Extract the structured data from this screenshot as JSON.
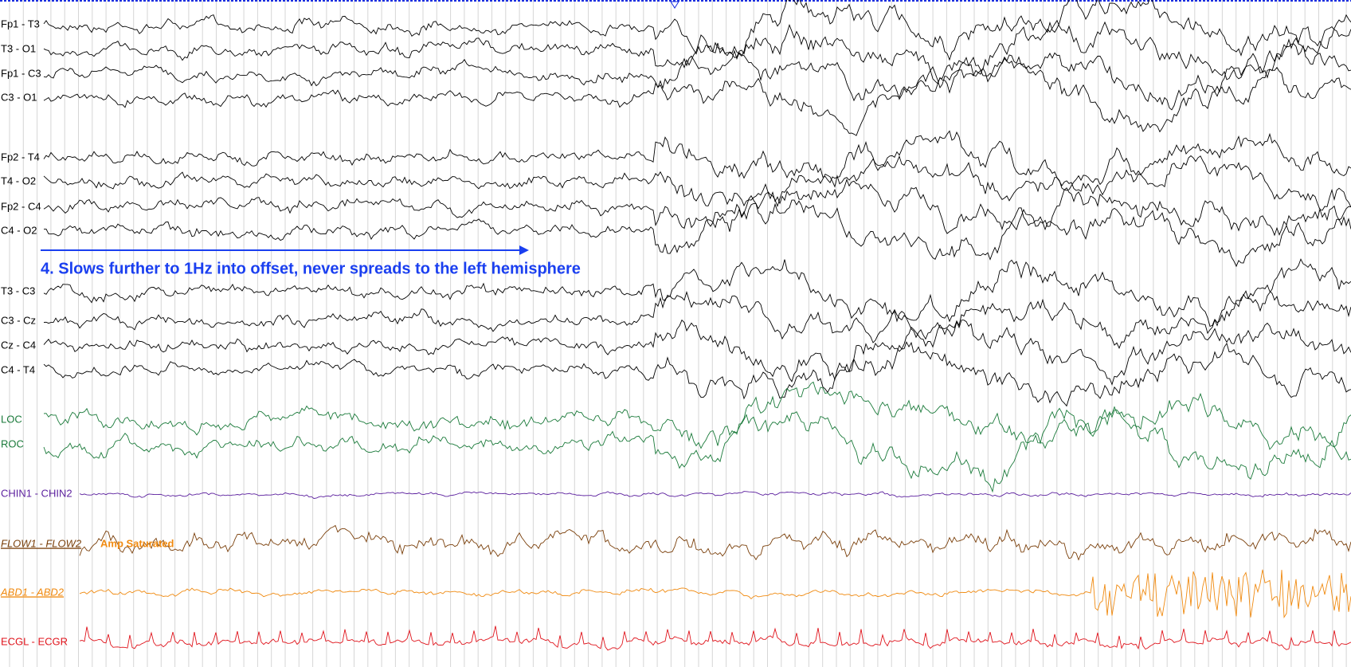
{
  "channels": [
    {
      "label": "Fp1 - T3",
      "color": "#000000"
    },
    {
      "label": "T3 - O1",
      "color": "#000000"
    },
    {
      "label": "Fp1 - C3",
      "color": "#000000"
    },
    {
      "label": "C3 - O1",
      "color": "#000000"
    },
    {
      "label": "Fp2 - T4",
      "color": "#000000"
    },
    {
      "label": "T4 - O2",
      "color": "#000000"
    },
    {
      "label": "Fp2 - C4",
      "color": "#000000"
    },
    {
      "label": "C4 - O2",
      "color": "#000000"
    },
    {
      "label": "T3 - C3",
      "color": "#000000"
    },
    {
      "label": "C3 - Cz",
      "color": "#000000"
    },
    {
      "label": "Cz - C4",
      "color": "#000000"
    },
    {
      "label": "C4 - T4",
      "color": "#000000"
    },
    {
      "label": "LOC",
      "color": "#1a7a3a"
    },
    {
      "label": "ROC",
      "color": "#1a7a3a"
    },
    {
      "label": "CHIN1 - CHIN2",
      "color": "#5b1f9e"
    },
    {
      "label": "FLOW1 - FLOW2",
      "color": "#7a3f0a"
    },
    {
      "label": "ABD1 - ABD2",
      "color": "#f08a10"
    },
    {
      "label": "ECGL - ECGR",
      "color": "#e0141c"
    }
  ],
  "annotation": "4. Slows further to 1Hz into offset, never spreads to the left hemisphere",
  "amp_note": "Amp Saturated"
}
